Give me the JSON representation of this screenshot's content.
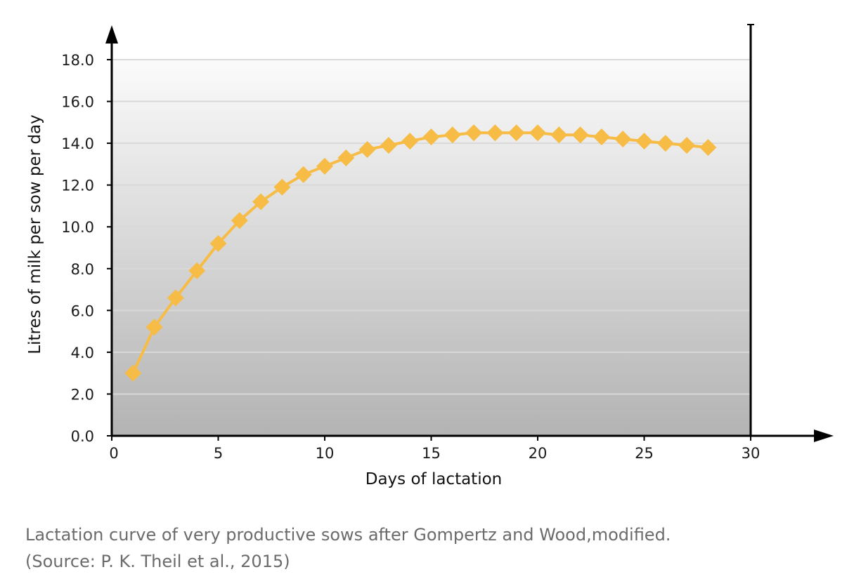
{
  "chart_data": {
    "type": "line",
    "xlabel": "Days of lactation",
    "ylabel": "Litres of milk per sow per day",
    "xlim": [
      0,
      30
    ],
    "ylim": [
      0,
      18
    ],
    "x_ticks": [
      "0",
      "5",
      "10",
      "15",
      "20",
      "25",
      "30"
    ],
    "y_ticks": [
      "0.0",
      "2.0",
      "4.0",
      "6.0",
      "8.0",
      "10.0",
      "12.0",
      "14.0",
      "16.0",
      "18.0"
    ],
    "grid": "horizontal",
    "marker": "diamond",
    "series": [
      {
        "x": [
          1,
          2,
          3,
          4,
          5,
          6,
          7,
          8,
          9,
          10,
          11,
          12,
          13,
          14,
          15,
          16,
          17,
          18,
          19,
          20,
          21,
          22,
          23,
          24,
          25,
          26,
          27,
          28
        ],
        "values": [
          3.0,
          5.2,
          6.6,
          7.9,
          9.2,
          10.3,
          11.2,
          11.9,
          12.5,
          12.9,
          13.3,
          13.7,
          13.9,
          14.1,
          14.3,
          14.4,
          14.5,
          14.5,
          14.5,
          14.5,
          14.4,
          14.4,
          14.3,
          14.2,
          14.1,
          14.0,
          13.9,
          13.8
        ]
      }
    ],
    "colors": {
      "series": "#f7bc46",
      "gridline": "#d9d9d9",
      "axis": "#000000"
    }
  },
  "caption": {
    "line1": "Lactation curve of very productive sows after Gompertz and Wood,modified.",
    "line2": "(Source: P. K. Theil et al., 2015)"
  }
}
